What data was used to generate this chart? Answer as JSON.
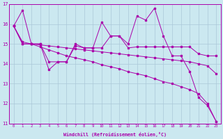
{
  "xlabel": "Windchill (Refroidissement éolien,°C)",
  "bg_color": "#cbe8f0",
  "grid_color": "#aac8d8",
  "line_color": "#aa00aa",
  "xlim": [
    -0.5,
    23.5
  ],
  "ylim": [
    11,
    17
  ],
  "yticks": [
    11,
    12,
    13,
    14,
    15,
    16,
    17
  ],
  "xticks": [
    0,
    1,
    2,
    3,
    4,
    5,
    6,
    7,
    8,
    9,
    10,
    11,
    12,
    13,
    14,
    15,
    16,
    17,
    18,
    19,
    20,
    21,
    22,
    23
  ],
  "series": [
    [
      15.9,
      16.7,
      15.0,
      15.0,
      13.7,
      14.1,
      14.1,
      14.9,
      14.8,
      14.8,
      16.1,
      15.4,
      15.4,
      15.0,
      16.4,
      16.2,
      16.8,
      15.4,
      14.4,
      14.4,
      13.6,
      12.3,
      11.9,
      11.1
    ],
    [
      15.9,
      15.1,
      15.0,
      14.85,
      14.7,
      14.55,
      14.4,
      14.3,
      14.2,
      14.1,
      13.95,
      13.85,
      13.75,
      13.6,
      13.5,
      13.4,
      13.25,
      13.1,
      13.0,
      12.85,
      12.7,
      12.5,
      12.0,
      11.1
    ],
    [
      15.9,
      15.0,
      15.0,
      14.95,
      14.9,
      14.85,
      14.8,
      14.75,
      14.7,
      14.65,
      14.6,
      14.55,
      14.5,
      14.45,
      14.4,
      14.35,
      14.3,
      14.25,
      14.2,
      14.15,
      14.1,
      14.0,
      13.9,
      13.5
    ],
    [
      15.9,
      15.0,
      15.0,
      15.0,
      14.1,
      14.1,
      14.1,
      15.0,
      14.8,
      14.8,
      14.8,
      15.4,
      15.4,
      14.8,
      14.85,
      14.85,
      14.85,
      14.85,
      14.85,
      14.85,
      14.85,
      14.5,
      14.4,
      14.4
    ]
  ]
}
